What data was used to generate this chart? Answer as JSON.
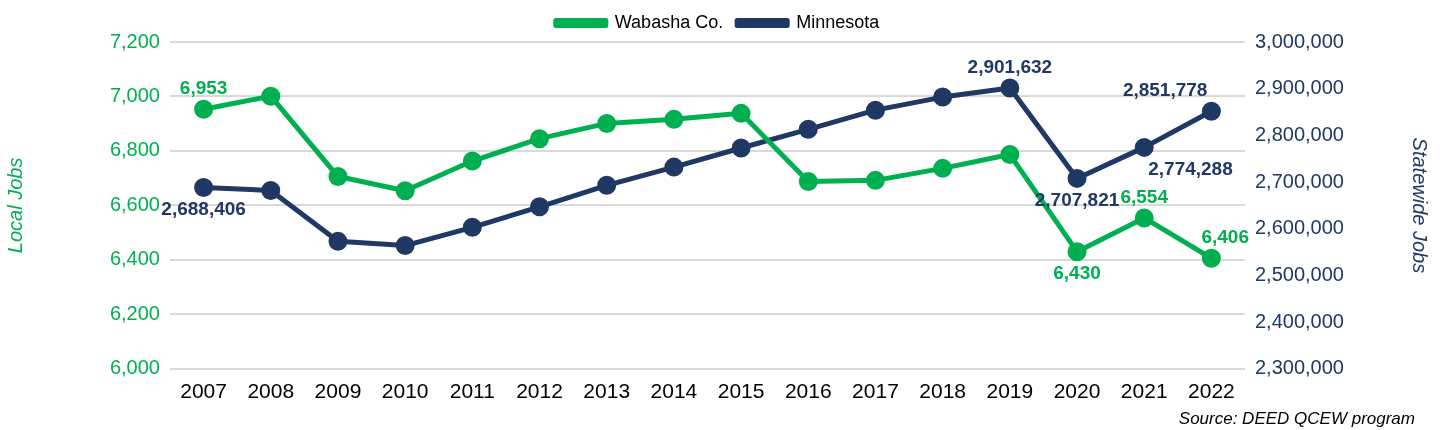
{
  "chart_data": {
    "type": "line",
    "categories": [
      "2007",
      "2008",
      "2009",
      "2010",
      "2011",
      "2012",
      "2013",
      "2014",
      "2015",
      "2016",
      "2017",
      "2018",
      "2019",
      "2020",
      "2021",
      "2022"
    ],
    "series": [
      {
        "name": "Wabasha Co.",
        "color": "#00b050",
        "values": [
          6953,
          7001,
          6706,
          6654,
          6763,
          6845,
          6901,
          6916,
          6938,
          6688,
          6692,
          6736,
          6787,
          6430,
          6554,
          6406
        ],
        "value_labels": [
          "6,953",
          null,
          null,
          null,
          null,
          null,
          null,
          null,
          null,
          null,
          null,
          null,
          null,
          "6,430",
          "6,554",
          "6,406"
        ]
      },
      {
        "name": "Minnesota",
        "color": "#203864",
        "axis": "y2",
        "values": [
          2688406,
          2682000,
          2573000,
          2564000,
          2603000,
          2647000,
          2693000,
          2732000,
          2773000,
          2813000,
          2854000,
          2882000,
          2901632,
          2707821,
          2774288,
          2851778
        ],
        "value_labels": [
          "2,688,406",
          null,
          null,
          null,
          null,
          null,
          null,
          null,
          null,
          null,
          null,
          null,
          "2,901,632",
          "2,707,821",
          "2,774,288",
          "2,851,778"
        ]
      }
    ],
    "ylabel": "Local Jobs",
    "y2label": "Statewide Jobs",
    "ylim": [
      6000,
      7200
    ],
    "yticks": [
      {
        "value": 6000,
        "label": "6,000"
      },
      {
        "value": 6200,
        "label": "6,200"
      },
      {
        "value": 6400,
        "label": "6,400"
      },
      {
        "value": 6600,
        "label": "6,600"
      },
      {
        "value": 6800,
        "label": "6,800"
      },
      {
        "value": 7000,
        "label": "7,000"
      },
      {
        "value": 7200,
        "label": "7,200"
      }
    ],
    "y2lim": [
      2300000,
      3000000
    ],
    "y2ticks": [
      {
        "value": 2300000,
        "label": "2,300,000"
      },
      {
        "value": 2400000,
        "label": "2,400,000"
      },
      {
        "value": 2500000,
        "label": "2,500,000"
      },
      {
        "value": 2600000,
        "label": "2,600,000"
      },
      {
        "value": 2700000,
        "label": "2,700,000"
      },
      {
        "value": 2800000,
        "label": "2,800,000"
      },
      {
        "value": 2900000,
        "label": "2,900,000"
      },
      {
        "value": 3000000,
        "label": "3,000,000"
      }
    ],
    "grid": "y",
    "legend": "top",
    "marker": "circle",
    "line_style": "solid",
    "annotations": [
      "Source: DEED QCEW program"
    ]
  }
}
